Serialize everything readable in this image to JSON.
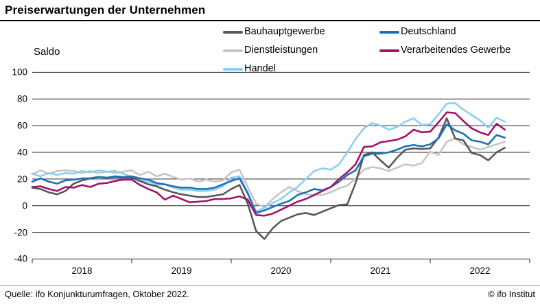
{
  "title": "Preiserwartungen der Unternehmen",
  "footer": {
    "source": "Quelle: ifo Konjunkturumfragen, Oktober 2022.",
    "copyright": "© ifo Institut"
  },
  "legend": [
    {
      "label": "Bauhauptgewerbe",
      "color": "#575756"
    },
    {
      "label": "Deutschland",
      "color": "#1d70b7"
    },
    {
      "label": "Dienstleistungen",
      "color": "#c5c5c4"
    },
    {
      "label": "Verarbeitendes Gewerbe",
      "color": "#a2116b"
    },
    {
      "label": "Handel",
      "color": "#8dcdf4"
    }
  ],
  "chart_data": {
    "type": "line",
    "title": "Preiserwartungen der Unternehmen",
    "xlabel": "",
    "ylabel": "Saldo",
    "ylim": [
      -40,
      100
    ],
    "yticks": [
      100,
      80,
      60,
      40,
      20,
      0,
      -20,
      -40
    ],
    "xticks": [
      "2018",
      "2019",
      "2020",
      "2021",
      "2022"
    ],
    "x_unit": "month",
    "x_start": "2018-01",
    "x_end": "2022-10",
    "grid": true,
    "legend_position": "top",
    "series": [
      {
        "name": "Dienstleistungen",
        "color": "#c5c5c4",
        "values": [
          23.5,
          26.5,
          24,
          26,
          26.5,
          26,
          24.5,
          26,
          24.5,
          25.5,
          24.5,
          25.5,
          26.5,
          23,
          25.5,
          22,
          24,
          21.5,
          19.5,
          20.5,
          18,
          19.5,
          18,
          19,
          25,
          27,
          14,
          1.5,
          -1,
          5,
          10,
          14,
          11,
          8.5,
          8,
          8,
          10,
          13,
          15,
          20.5,
          27,
          29,
          28,
          26,
          28.5,
          31,
          30,
          32,
          40.5,
          38,
          48,
          50.5,
          46,
          44,
          42,
          44,
          46,
          48
        ]
      },
      {
        "name": "Handel",
        "color": "#8dcdf4",
        "values": [
          24,
          22,
          24.5,
          23,
          24.5,
          24,
          26,
          25,
          26.5,
          25.5,
          26,
          24,
          21.5,
          19,
          18,
          15.5,
          16,
          13.5,
          12,
          12,
          11,
          11,
          12,
          14.5,
          21,
          22,
          10,
          -4.5,
          -1.5,
          2,
          5,
          10,
          14,
          20,
          26,
          28,
          27,
          31,
          40,
          50,
          58,
          62,
          60,
          57,
          59,
          63,
          65.5,
          60.5,
          61,
          68.5,
          76.5,
          77,
          72,
          68,
          64,
          58.5,
          66,
          63
        ]
      },
      {
        "name": "Bauhauptgewerbe",
        "color": "#575756",
        "values": [
          13.5,
          12.5,
          10,
          8.5,
          11,
          16.5,
          19,
          20.5,
          21.5,
          21,
          21.5,
          21,
          21,
          18.5,
          16,
          14.5,
          12,
          10,
          8.5,
          7.5,
          6.5,
          6.5,
          7.5,
          8.5,
          12.5,
          15.5,
          1.5,
          -19,
          -25,
          -17,
          -11.5,
          -9,
          -6.5,
          -5.5,
          -7,
          -4.5,
          -2,
          0.5,
          1,
          17,
          38,
          40,
          34,
          28.5,
          36,
          42,
          43,
          42.5,
          43,
          51,
          65.5,
          50.5,
          49,
          39.5,
          38,
          34,
          40,
          43.5
        ]
      },
      {
        "name": "Deutschland",
        "color": "#1d70b7",
        "values": [
          18,
          20.5,
          18,
          16.5,
          19,
          19.5,
          20.5,
          20.5,
          21.5,
          21,
          22,
          21.5,
          22,
          20.5,
          19.5,
          17,
          16,
          14.5,
          13.5,
          13.5,
          12.5,
          12.5,
          13.5,
          16,
          18.5,
          20.5,
          9,
          -5.5,
          -3.5,
          -1,
          1.5,
          3.5,
          8,
          10,
          12.5,
          11.5,
          14,
          18,
          23,
          26.5,
          37,
          39,
          39,
          40,
          42,
          44.5,
          45.5,
          44.5,
          46,
          50.5,
          61,
          56.5,
          54,
          49,
          48,
          46,
          53,
          51
        ]
      },
      {
        "name": "Verarbeitendes Gewerbe",
        "color": "#a2116b",
        "values": [
          14,
          14.5,
          12.5,
          11,
          14,
          13.5,
          15.5,
          14,
          16.5,
          17,
          18.5,
          19.5,
          19.5,
          15.5,
          12.5,
          10,
          4.5,
          7.5,
          5,
          2.5,
          3,
          3.5,
          5,
          5,
          5.5,
          7,
          4.5,
          -7,
          -7.5,
          -6,
          -3,
          0,
          3,
          5,
          8,
          11,
          14,
          20,
          25,
          31,
          44,
          44.5,
          47.5,
          48.5,
          49.5,
          52,
          57,
          55,
          55.5,
          62.5,
          70,
          69.5,
          63.5,
          58,
          55,
          53,
          61.5,
          57
        ]
      }
    ]
  },
  "layout_colors": {
    "gridline": "#262626",
    "footer_rule": "#9d9d9c"
  }
}
